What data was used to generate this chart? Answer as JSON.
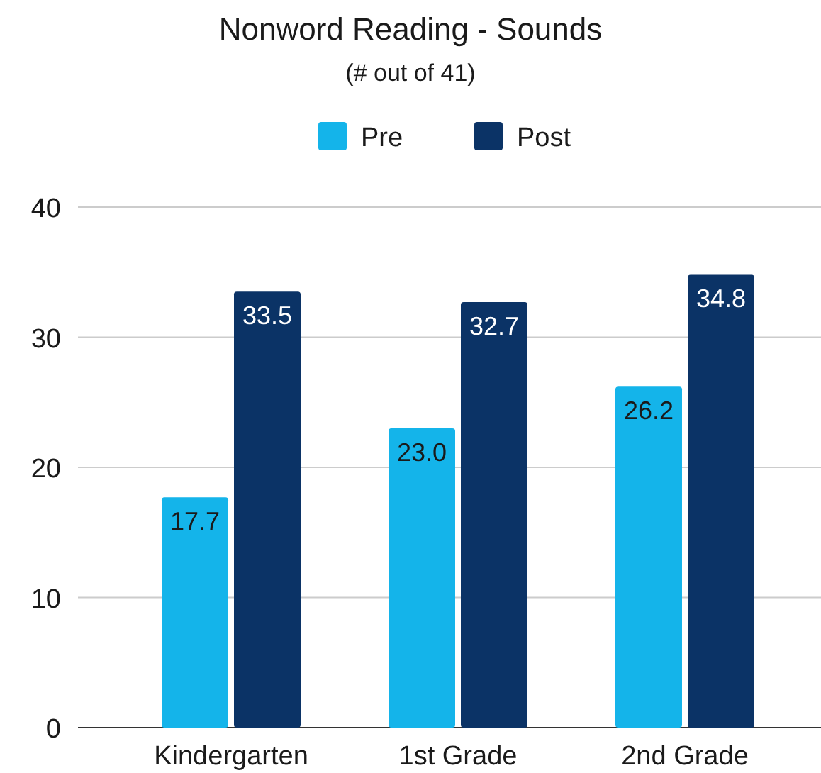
{
  "chart_data": {
    "type": "bar",
    "title": "Nonword Reading - Sounds",
    "subtitle": "(# out of 41)",
    "categories": [
      "Kindergarten",
      "1st Grade",
      "2nd Grade"
    ],
    "series": [
      {
        "name": "Pre",
        "color": "#14b4ea",
        "values": [
          17.7,
          23.0,
          26.2
        ],
        "value_labels": [
          "17.7",
          "23.0",
          "26.2"
        ]
      },
      {
        "name": "Post",
        "color": "#0b3366",
        "values": [
          33.5,
          32.7,
          34.8
        ],
        "value_labels": [
          "33.5",
          "32.7",
          "34.8"
        ]
      }
    ],
    "ylim": [
      0,
      40
    ],
    "yticks": [
      0,
      10,
      20,
      30,
      40
    ],
    "grid": "y",
    "legend": "top"
  }
}
